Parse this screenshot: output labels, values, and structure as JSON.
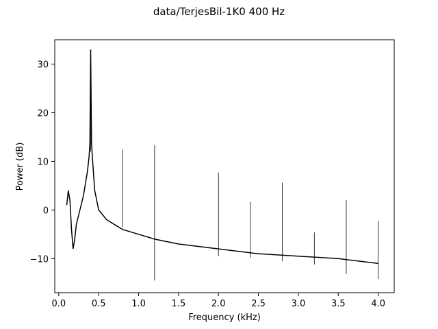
{
  "chart_data": {
    "type": "line",
    "title": "data/TerjesBil-1K0   400 Hz",
    "xlabel": "Frequency (kHz)",
    "ylabel": "Power (dB)",
    "xlim": [
      -0.05,
      4.2
    ],
    "ylim": [
      -17,
      35
    ],
    "xticks": [
      {
        "value": 0.0,
        "label": "0.0"
      },
      {
        "value": 0.5,
        "label": "0.5"
      },
      {
        "value": 1.0,
        "label": "1.0"
      },
      {
        "value": 1.5,
        "label": "1.5"
      },
      {
        "value": 2.0,
        "label": "2.0"
      },
      {
        "value": 2.5,
        "label": "2.5"
      },
      {
        "value": 3.0,
        "label": "3.0"
      },
      {
        "value": 3.5,
        "label": "3.5"
      },
      {
        "value": 4.0,
        "label": "4.0"
      }
    ],
    "yticks": [
      {
        "value": -10,
        "label": "−10"
      },
      {
        "value": 0,
        "label": "0"
      },
      {
        "value": 10,
        "label": "10"
      },
      {
        "value": 20,
        "label": "20"
      },
      {
        "value": 30,
        "label": "30"
      }
    ],
    "grid": false,
    "line_color": "#000000",
    "series": [
      {
        "x": [
          0.1,
          0.12,
          0.14,
          0.16,
          0.18,
          0.2,
          0.22,
          0.25,
          0.28,
          0.31,
          0.34,
          0.36,
          0.38,
          0.39,
          0.4,
          0.41,
          0.42,
          0.45,
          0.5,
          0.6,
          0.7,
          0.8,
          1.0,
          1.2,
          1.5,
          2.0,
          2.5,
          3.0,
          3.5,
          4.0
        ],
        "y": [
          1,
          4,
          2,
          -4,
          -8,
          -6,
          -3,
          -1,
          1,
          3,
          6,
          8,
          11,
          14,
          33,
          14,
          11,
          4,
          0,
          -2,
          -3,
          -4,
          -5,
          -6,
          -7,
          -8,
          -9,
          -9.5,
          -10,
          -11
        ]
      }
    ],
    "harmonic_peaks": [
      {
        "x": 0.4,
        "top": 32.8,
        "bottom": 12
      },
      {
        "x": 0.8,
        "top": 12.4,
        "bottom": -3.5
      },
      {
        "x": 1.2,
        "top": 13.3,
        "bottom": -14.5
      },
      {
        "x": 2.0,
        "top": 7.7,
        "bottom": -9.5
      },
      {
        "x": 2.4,
        "top": 1.6,
        "bottom": -9.8
      },
      {
        "x": 2.8,
        "top": 5.6,
        "bottom": -10.5
      },
      {
        "x": 3.2,
        "top": -4.6,
        "bottom": -11.2
      },
      {
        "x": 3.6,
        "top": 2.0,
        "bottom": -13.2
      },
      {
        "x": 4.0,
        "top": -2.3,
        "bottom": -14.2
      }
    ]
  }
}
